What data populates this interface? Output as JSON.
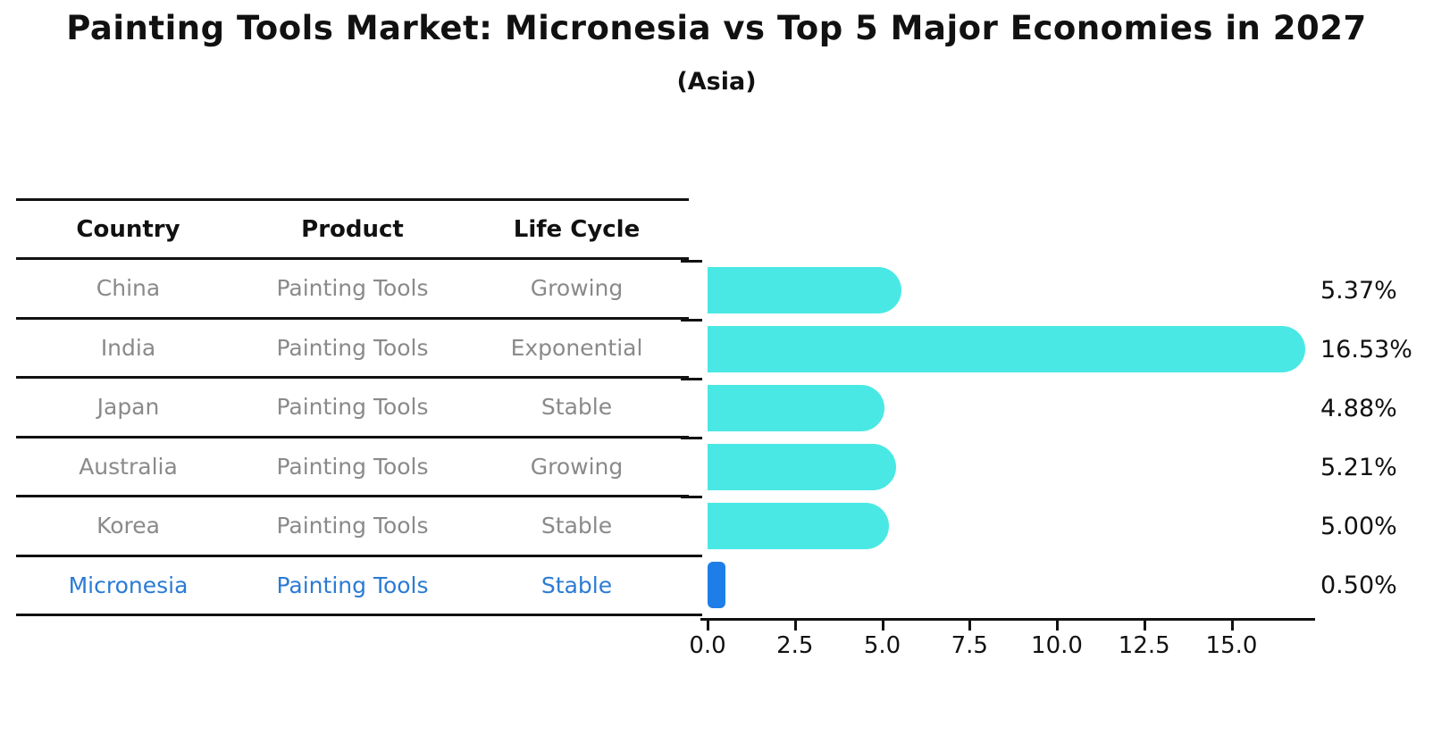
{
  "title": "Painting Tools Market: Micronesia vs Top 5 Major Economies in 2027",
  "subtitle": "(Asia)",
  "table": {
    "headers": [
      "Country",
      "Product",
      "Life Cycle"
    ],
    "rows": [
      {
        "country": "China",
        "product": "Painting Tools",
        "life_cycle": "Growing",
        "highlighted": false
      },
      {
        "country": "India",
        "product": "Painting Tools",
        "life_cycle": "Exponential",
        "highlighted": false
      },
      {
        "country": "Japan",
        "product": "Painting Tools",
        "life_cycle": "Stable",
        "highlighted": false
      },
      {
        "country": "Australia",
        "product": "Painting Tools",
        "life_cycle": "Growing",
        "highlighted": false
      },
      {
        "country": "Korea",
        "product": "Painting Tools",
        "life_cycle": "Stable",
        "highlighted": false
      },
      {
        "country": "Micronesia",
        "product": "Painting Tools",
        "life_cycle": "Stable",
        "highlighted": true
      }
    ]
  },
  "chart_data": {
    "type": "bar",
    "orientation": "horizontal",
    "categories": [
      "China",
      "India",
      "Japan",
      "Australia",
      "Korea",
      "Micronesia"
    ],
    "values": [
      5.37,
      16.53,
      4.88,
      5.21,
      5.0,
      0.5
    ],
    "value_labels": [
      "5.37%",
      "16.53%",
      "4.88%",
      "5.21%",
      "5.00%",
      "0.50%"
    ],
    "highlight_category": "Micronesia",
    "highlight_index": 5,
    "xticks": [
      0.0,
      2.5,
      5.0,
      7.5,
      10.0,
      12.5,
      15.0
    ],
    "xtick_labels": [
      "0.0",
      "2.5",
      "5.0",
      "7.5",
      "10.0",
      "12.5",
      "15.0"
    ],
    "xlim": [
      0,
      17.3
    ],
    "grid": false,
    "legend": false,
    "xlabel": "",
    "ylabel": "",
    "colors": {
      "bar_default": "#4ae8e4",
      "bar_highlight": "#1e7ee8",
      "text_gray": "#8a8a8a",
      "text_highlight_blue": "#2b7bd4",
      "axis_black": "#111111"
    }
  }
}
